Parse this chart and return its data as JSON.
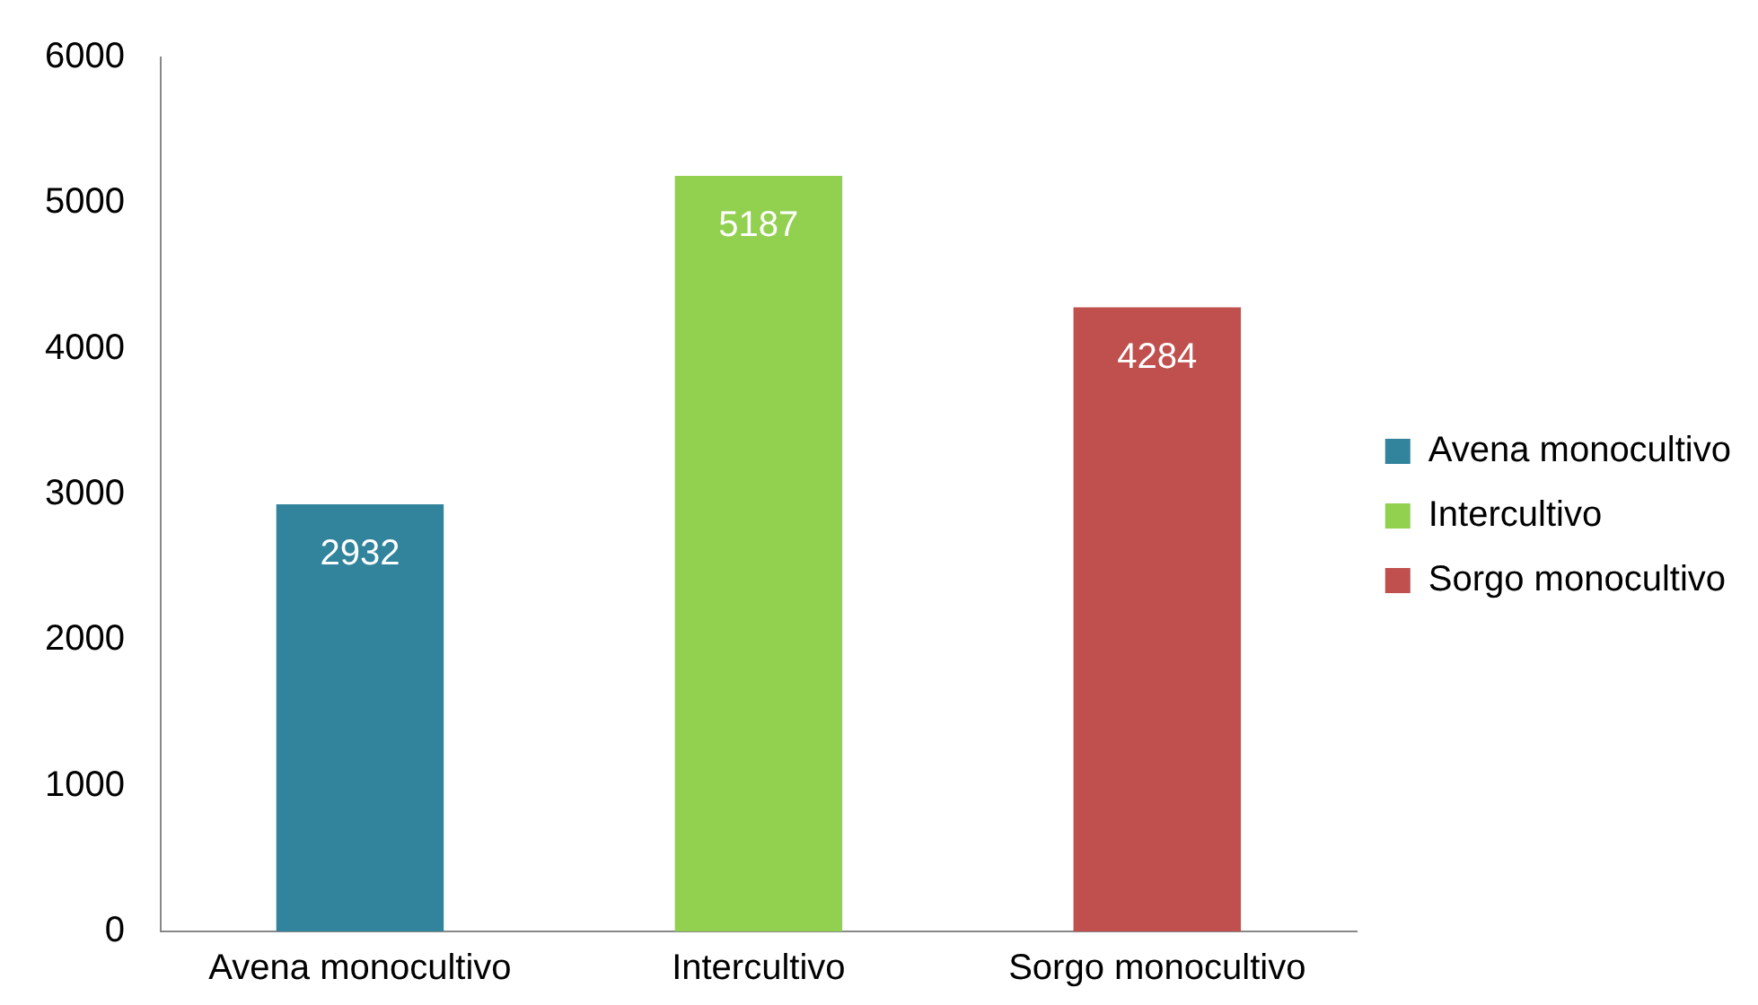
{
  "chart_data": {
    "type": "bar",
    "categories": [
      "Avena monocultivo",
      "Intercultivo",
      "Sorgo monocultivo"
    ],
    "series": [
      {
        "name": "Avena monocultivo",
        "color": "#31849b",
        "values": [
          2932,
          null,
          null
        ]
      },
      {
        "name": "Intercultivo",
        "color": "#92d050",
        "values": [
          null,
          5187,
          null
        ]
      },
      {
        "name": "Sorgo monocultivo",
        "color": "#c0504d",
        "values": [
          null,
          null,
          4284
        ]
      }
    ],
    "ylim": [
      0,
      6000
    ],
    "yticks": [
      0,
      1000,
      2000,
      3000,
      4000,
      5000,
      6000
    ],
    "grid": false,
    "legend": "right",
    "data_labels": true
  }
}
